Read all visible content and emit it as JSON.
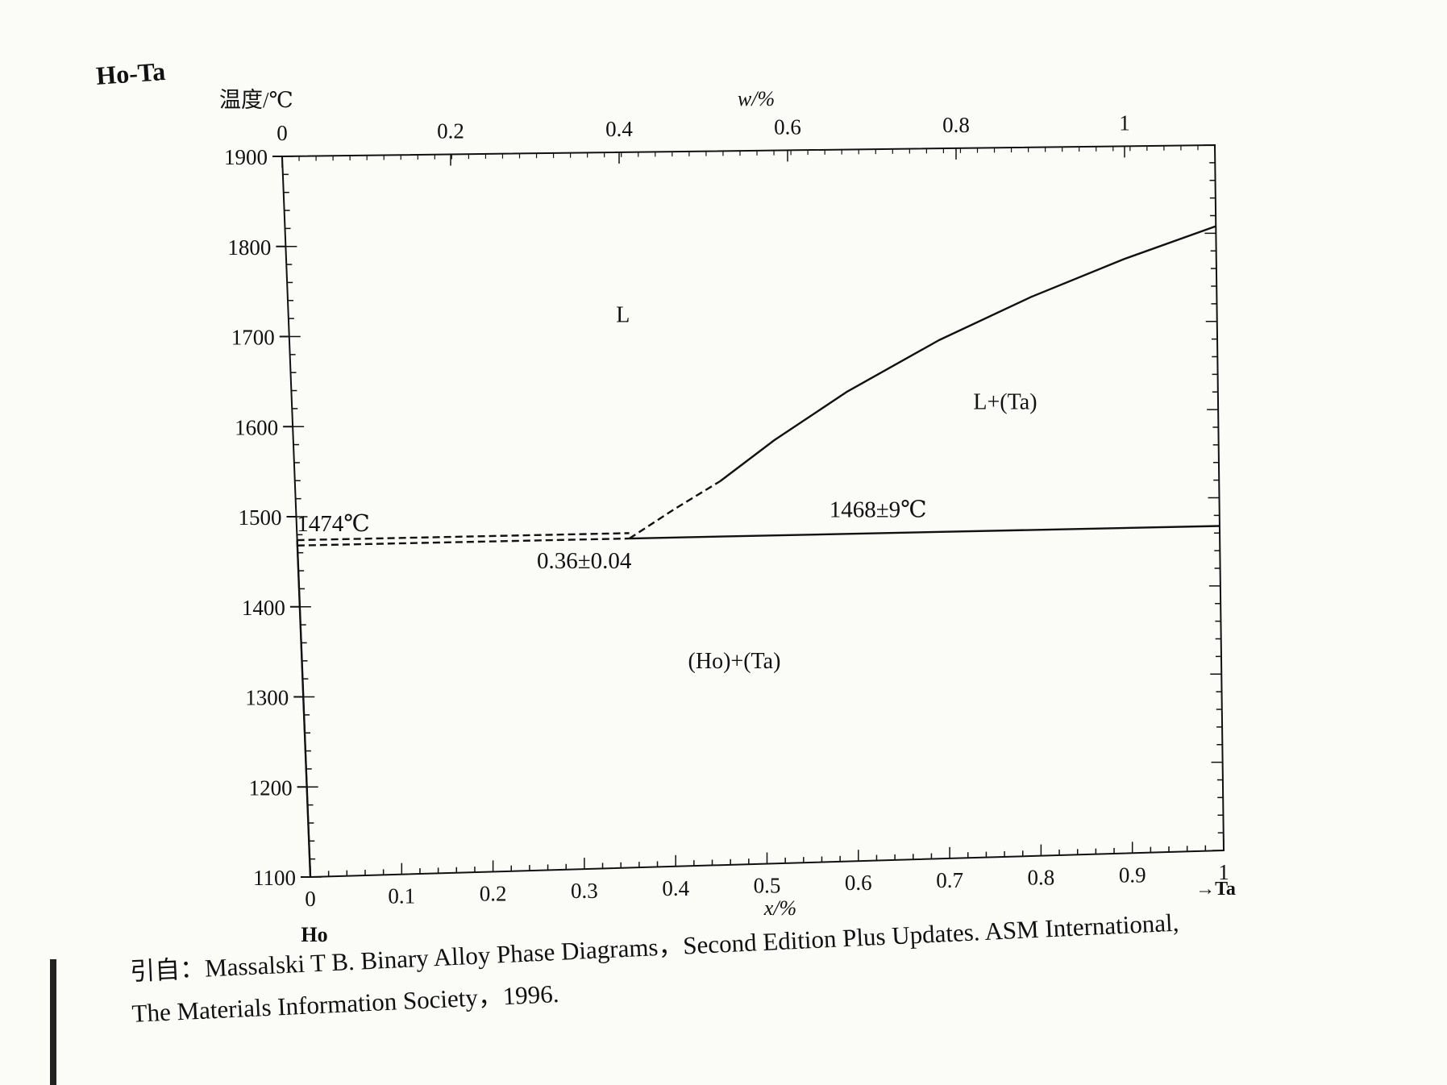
{
  "figure_title": "Ho-Ta",
  "citation": {
    "line1": "引自：Massalski T B.  Binary Alloy Phase Diagrams，Second Edition Plus Updates.  ASM International,",
    "line2": "The Materials Information Society，1996."
  },
  "chart_data": {
    "type": "line",
    "title": "Ho-Ta",
    "ylabel": "温度/℃",
    "xlabel": "x/%",
    "top_axis_label": "w/%",
    "ylim": [
      1100,
      1900
    ],
    "xlim": [
      0,
      1
    ],
    "yticks": [
      "1100",
      "1200",
      "1300",
      "1400",
      "1500",
      "1600",
      "1700",
      "1800",
      "1900"
    ],
    "xticks": [
      "0",
      "0.1",
      "0.2",
      "0.3",
      "0.4",
      "0.5",
      "0.6",
      "0.7",
      "0.8",
      "0.9",
      "1"
    ],
    "top_ticks": [
      "0",
      "0.2",
      "0.4",
      "0.6",
      "0.8",
      "1"
    ],
    "left_element": "Ho",
    "right_element": "→Ta",
    "series": [
      {
        "style": "solid",
        "x": [
          0,
          0
        ],
        "y": [
          1100,
          1474
        ]
      },
      {
        "style": "dashed",
        "x": [
          0,
          0.36
        ],
        "y": [
          1474,
          1474
        ]
      },
      {
        "style": "dashed",
        "x": [
          0,
          0.36
        ],
        "y": [
          1468,
          1468
        ]
      },
      {
        "style": "solid",
        "x": [
          0.36,
          1
        ],
        "y": [
          1468,
          1468
        ]
      },
      {
        "style": "dashed",
        "x": [
          0.36,
          0.41,
          0.46
        ],
        "y": [
          1468,
          1500,
          1530
        ]
      },
      {
        "style": "solid",
        "x": [
          0.46,
          0.52,
          0.6,
          0.7,
          0.8,
          0.9,
          1.0
        ],
        "y": [
          1530,
          1575,
          1628,
          1684,
          1731,
          1772,
          1808
        ]
      }
    ],
    "annotations": {
      "region_L": "L",
      "region_L_Ta": "L+(Ta)",
      "region_Ho_Ta": "(Ho)+(Ta)",
      "temp_1474": "1474℃",
      "temp_1468": "1468±9℃",
      "composition": "0.36±0.04"
    }
  }
}
